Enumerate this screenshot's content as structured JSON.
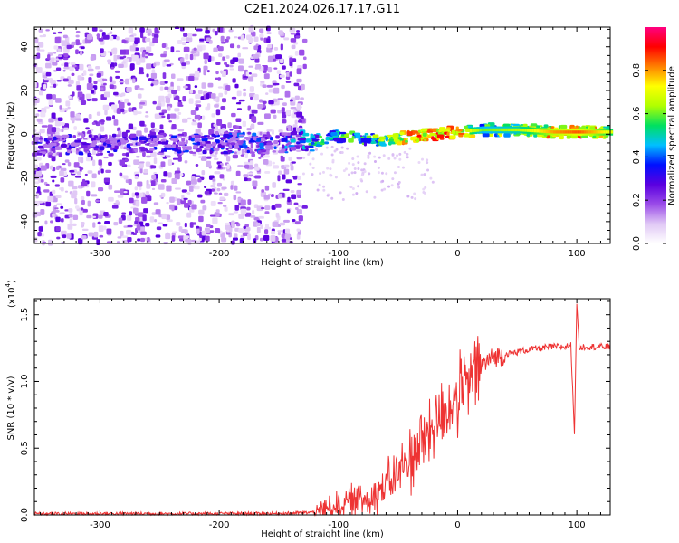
{
  "title": "C2E1.2024.026.17.17.G11",
  "chart_data": [
    {
      "type": "heatmap",
      "xlabel": "Height of straight line (km)",
      "ylabel": "Frequency (Hz)",
      "xlim": [
        -355,
        128
      ],
      "ylim": [
        -50,
        49
      ],
      "xticks": [
        -300,
        -200,
        -100,
        0,
        100
      ],
      "yticks": [
        -40,
        -20,
        0,
        20,
        40
      ],
      "colorbar": {
        "label": "Normalized spectral amplitude",
        "range": [
          0.0,
          1.0
        ],
        "ticks": [
          "0.0",
          "0.2",
          "0.4",
          "0.6",
          "0.8"
        ],
        "colormap": [
          "#ffffff",
          "#e0c8f5",
          "#9a4be8",
          "#5a00e0",
          "#0010ff",
          "#00c0ff",
          "#00e060",
          "#b0ff00",
          "#ffff00",
          "#ff8000",
          "#ff0000",
          "#ff0080"
        ]
      },
      "ridge": {
        "description_points_x": [
          -355,
          -300,
          -200,
          -150,
          -120,
          -100,
          -80,
          -60,
          -40,
          -20,
          0,
          20,
          50,
          80,
          100,
          128
        ],
        "description_points_y": [
          -5,
          -5,
          -4,
          -4,
          -3,
          -1,
          -2,
          -3,
          -1,
          0,
          1,
          2,
          2,
          1,
          1,
          1
        ],
        "intensity": [
          0.25,
          0.25,
          0.3,
          0.35,
          0.5,
          0.55,
          0.5,
          0.65,
          0.8,
          0.85,
          0.8,
          0.6,
          0.65,
          0.8,
          0.85,
          0.7
        ]
      },
      "grid": false
    },
    {
      "type": "line",
      "xlabel": "Height of straight line (km)",
      "ylabel": "SNR (10 * v/v)",
      "y_multiplier_label": "(x10",
      "y_multiplier_exp": "4",
      "xlim": [
        -355,
        128
      ],
      "ylim": [
        0,
        1.62
      ],
      "xticks": [
        -300,
        -200,
        -100,
        0,
        100
      ],
      "yticks": [
        "0.0",
        "0.5",
        "1.0",
        "1.5"
      ],
      "color": "#ee3333",
      "series": [
        {
          "x": [
            -355,
            -300,
            -250,
            -200,
            -150,
            -120,
            -110,
            -100,
            -90,
            -80,
            -70,
            -60,
            -50,
            -40,
            -30,
            -20,
            -10,
            0,
            10,
            20,
            30,
            40,
            50,
            60,
            70,
            80,
            90,
            95,
            98,
            100,
            102,
            105,
            110,
            120,
            128
          ],
          "y": [
            0.01,
            0.01,
            0.01,
            0.01,
            0.01,
            0.02,
            0.05,
            0.08,
            0.1,
            0.12,
            0.15,
            0.22,
            0.32,
            0.42,
            0.55,
            0.68,
            0.78,
            0.88,
            1.0,
            1.12,
            1.18,
            1.2,
            1.22,
            1.24,
            1.25,
            1.26,
            1.26,
            1.27,
            0.62,
            1.6,
            1.25,
            1.26,
            1.26,
            1.26,
            1.26
          ]
        }
      ],
      "grid": false
    }
  ]
}
